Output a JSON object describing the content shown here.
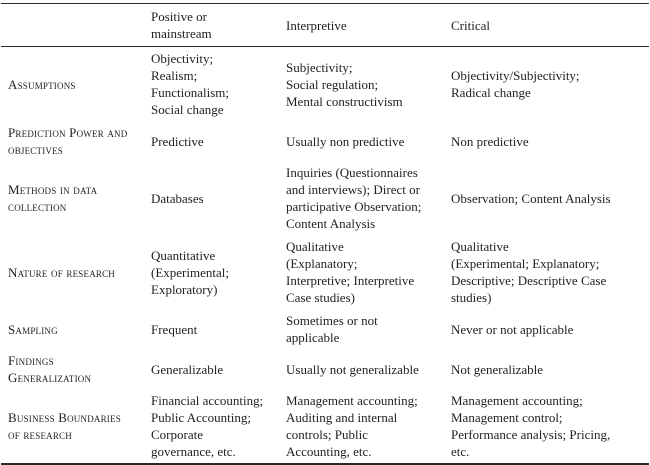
{
  "table": {
    "columns": [
      "",
      "Positive or\nmainstream",
      "Interpretive",
      "Critical"
    ],
    "rows": [
      {
        "label": "Assumptions",
        "cells": [
          "Objectivity;\nRealism;\nFunctionalism;\nSocial change",
          "Subjectivity;\nSocial regulation;\nMental constructivism",
          "Objectivity/Subjectivity;\nRadical change"
        ]
      },
      {
        "label": "Prediction Power and\nobjectives",
        "cells": [
          "Predictive",
          "Usually non predictive",
          "Non predictive"
        ]
      },
      {
        "label": "Methods in data\ncollection",
        "cells": [
          "Databases",
          "Inquiries (Questionnaires\nand interviews); Direct or\nparticipative Observation;\nContent Analysis",
          "Observation; Content Analysis"
        ]
      },
      {
        "label": "Nature of research",
        "cells": [
          "Quantitative\n(Experimental;\nExploratory)",
          "Qualitative\n(Explanatory;\nInterpretive; Interpretive\nCase studies)",
          "Qualitative\n(Experimental; Explanatory;\nDescriptive; Descriptive Case\nstudies)"
        ]
      },
      {
        "label": "Sampling",
        "cells": [
          "Frequent",
          "Sometimes or not\napplicable",
          "Never or not applicable"
        ]
      },
      {
        "label": "Findings\nGeneralization",
        "cells": [
          "Generalizable",
          "Usually not generalizable",
          "Not generalizable"
        ]
      },
      {
        "label": "Business Boundaries\nof research",
        "cells": [
          "Financial accounting;\nPublic Accounting;\nCorporate\ngovernance, etc.",
          "Management accounting;\nAuditing and internal\ncontrols; Public\nAccounting, etc.",
          "Management accounting;\nManagement control;\nPerformance analysis; Pricing,\netc."
        ]
      }
    ]
  }
}
